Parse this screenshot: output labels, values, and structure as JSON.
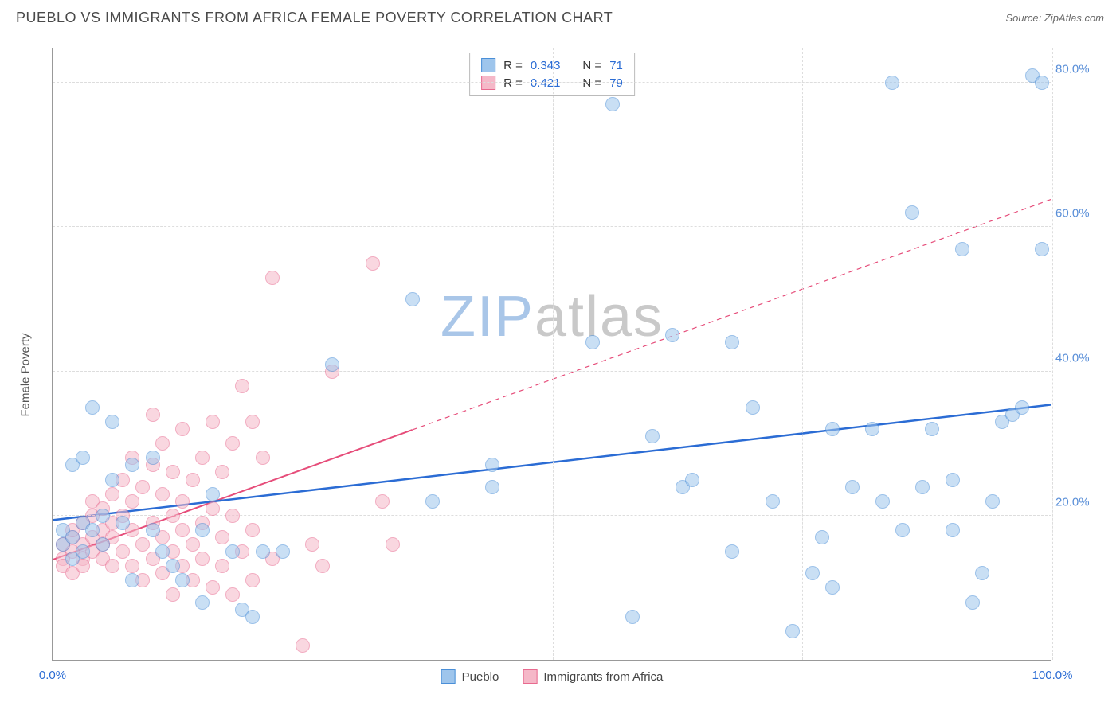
{
  "header": {
    "title": "PUEBLO VS IMMIGRANTS FROM AFRICA FEMALE POVERTY CORRELATION CHART",
    "source": "Source: ZipAtlas.com"
  },
  "watermark": {
    "zip_text": "ZIP",
    "atlas_text": "atlas",
    "zip_color": "#a9c6e8",
    "atlas_color": "#c9c9c9"
  },
  "chart": {
    "type": "scatter",
    "xlim": [
      0,
      100
    ],
    "ylim": [
      0,
      85
    ],
    "x_label_min": "0.0%",
    "x_label_max": "100.0%",
    "x_gridlines": [
      25,
      50,
      75,
      100
    ],
    "y_ticks": [
      {
        "v": 20,
        "label": "20.0%"
      },
      {
        "v": 40,
        "label": "40.0%"
      },
      {
        "v": 60,
        "label": "60.0%"
      },
      {
        "v": 80,
        "label": "80.0%"
      }
    ],
    "ylabel": "Female Poverty",
    "x_label_color": "#2b6cd4",
    "y_label_color": "#5a8fd8",
    "grid_color": "#dddddd",
    "axis_color": "#999999",
    "background": "#ffffff",
    "marker_radius": 9,
    "marker_opacity": 0.55,
    "series": {
      "pueblo": {
        "label": "Pueblo",
        "fill": "#9ec5ec",
        "stroke": "#4a8fd8",
        "stats": {
          "R": "0.343",
          "N": "71"
        },
        "trend": {
          "x1": 0,
          "y1": 19.5,
          "x2": 100,
          "y2": 35.5,
          "dash_from_x": null,
          "color": "#2b6cd4",
          "width": 2.5
        },
        "points": [
          [
            1,
            18
          ],
          [
            1,
            16
          ],
          [
            2,
            17
          ],
          [
            2,
            27
          ],
          [
            2,
            14
          ],
          [
            3,
            28
          ],
          [
            3,
            19
          ],
          [
            3,
            15
          ],
          [
            4,
            18
          ],
          [
            4,
            35
          ],
          [
            5,
            16
          ],
          [
            5,
            20
          ],
          [
            6,
            25
          ],
          [
            6,
            33
          ],
          [
            7,
            19
          ],
          [
            8,
            27
          ],
          [
            8,
            11
          ],
          [
            10,
            28
          ],
          [
            10,
            18
          ],
          [
            11,
            15
          ],
          [
            12,
            13
          ],
          [
            13,
            11
          ],
          [
            15,
            18
          ],
          [
            15,
            8
          ],
          [
            16,
            23
          ],
          [
            18,
            15
          ],
          [
            19,
            7
          ],
          [
            20,
            6
          ],
          [
            21,
            15
          ],
          [
            23,
            15
          ],
          [
            28,
            41
          ],
          [
            36,
            50
          ],
          [
            38,
            22
          ],
          [
            44,
            27
          ],
          [
            44,
            24
          ],
          [
            54,
            44
          ],
          [
            56,
            77
          ],
          [
            58,
            6
          ],
          [
            60,
            31
          ],
          [
            62,
            45
          ],
          [
            63,
            24
          ],
          [
            64,
            25
          ],
          [
            68,
            44
          ],
          [
            68,
            15
          ],
          [
            70,
            35
          ],
          [
            72,
            22
          ],
          [
            74,
            4
          ],
          [
            76,
            12
          ],
          [
            77,
            17
          ],
          [
            78,
            10
          ],
          [
            78,
            32
          ],
          [
            80,
            24
          ],
          [
            82,
            32
          ],
          [
            83,
            22
          ],
          [
            84,
            80
          ],
          [
            85,
            18
          ],
          [
            86,
            62
          ],
          [
            87,
            24
          ],
          [
            88,
            32
          ],
          [
            90,
            18
          ],
          [
            90,
            25
          ],
          [
            91,
            57
          ],
          [
            92,
            8
          ],
          [
            93,
            12
          ],
          [
            94,
            22
          ],
          [
            95,
            33
          ],
          [
            96,
            34
          ],
          [
            97,
            35
          ],
          [
            98,
            81
          ],
          [
            99,
            80
          ],
          [
            99,
            57
          ]
        ]
      },
      "africa": {
        "label": "Immigrants from Africa",
        "fill": "#f5b8c8",
        "stroke": "#e86a8f",
        "stats": {
          "R": "0.421",
          "N": "79"
        },
        "trend": {
          "x1": 0,
          "y1": 14,
          "x2": 100,
          "y2": 64,
          "dash_from_x": 36,
          "color": "#e64d7a",
          "width": 2
        },
        "points": [
          [
            1,
            14
          ],
          [
            1,
            16
          ],
          [
            1,
            13
          ],
          [
            2,
            15
          ],
          [
            2,
            17
          ],
          [
            2,
            12
          ],
          [
            2,
            18
          ],
          [
            3,
            14
          ],
          [
            3,
            16
          ],
          [
            3,
            19
          ],
          [
            3,
            13
          ],
          [
            4,
            17
          ],
          [
            4,
            20
          ],
          [
            4,
            15
          ],
          [
            4,
            22
          ],
          [
            5,
            18
          ],
          [
            5,
            14
          ],
          [
            5,
            21
          ],
          [
            5,
            16
          ],
          [
            6,
            19
          ],
          [
            6,
            13
          ],
          [
            6,
            23
          ],
          [
            6,
            17
          ],
          [
            7,
            20
          ],
          [
            7,
            15
          ],
          [
            7,
            25
          ],
          [
            8,
            18
          ],
          [
            8,
            13
          ],
          [
            8,
            22
          ],
          [
            8,
            28
          ],
          [
            9,
            16
          ],
          [
            9,
            11
          ],
          [
            9,
            24
          ],
          [
            10,
            19
          ],
          [
            10,
            14
          ],
          [
            10,
            27
          ],
          [
            10,
            34
          ],
          [
            11,
            17
          ],
          [
            11,
            12
          ],
          [
            11,
            23
          ],
          [
            11,
            30
          ],
          [
            12,
            20
          ],
          [
            12,
            15
          ],
          [
            12,
            26
          ],
          [
            12,
            9
          ],
          [
            13,
            18
          ],
          [
            13,
            13
          ],
          [
            13,
            22
          ],
          [
            13,
            32
          ],
          [
            14,
            16
          ],
          [
            14,
            25
          ],
          [
            14,
            11
          ],
          [
            15,
            19
          ],
          [
            15,
            14
          ],
          [
            15,
            28
          ],
          [
            16,
            21
          ],
          [
            16,
            10
          ],
          [
            16,
            33
          ],
          [
            17,
            17
          ],
          [
            17,
            13
          ],
          [
            17,
            26
          ],
          [
            18,
            20
          ],
          [
            18,
            9
          ],
          [
            18,
            30
          ],
          [
            19,
            15
          ],
          [
            19,
            38
          ],
          [
            20,
            18
          ],
          [
            20,
            33
          ],
          [
            20,
            11
          ],
          [
            21,
            28
          ],
          [
            22,
            53
          ],
          [
            22,
            14
          ],
          [
            25,
            2
          ],
          [
            26,
            16
          ],
          [
            27,
            13
          ],
          [
            28,
            40
          ],
          [
            32,
            55
          ],
          [
            33,
            22
          ],
          [
            34,
            16
          ]
        ]
      }
    },
    "stats_labels": {
      "R": "R =",
      "N": "N ="
    },
    "stats_value_color": "#2b6cd4"
  }
}
